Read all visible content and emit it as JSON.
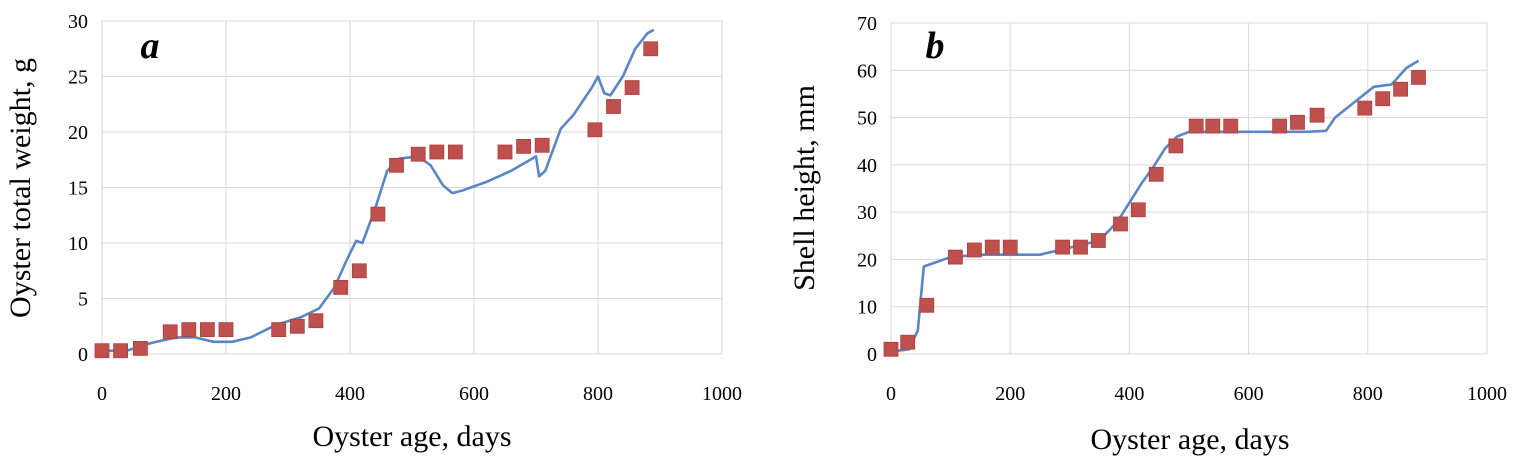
{
  "chart_data": [
    {
      "type": "line",
      "panel_letter": "a",
      "xlabel": "Oyster age, days",
      "ylabel": "Oyster total weight, g",
      "xlim": [
        0,
        1000
      ],
      "ylim": [
        0,
        30
      ],
      "xticks": [
        0,
        200,
        400,
        600,
        800,
        1000
      ],
      "yticks": [
        0,
        5,
        10,
        15,
        20,
        25,
        30
      ],
      "grid": true,
      "line_color": "#5b86c5",
      "marker_color": "#c0504d",
      "series": [
        {
          "kind": "line",
          "x": [
            0,
            40,
            80,
            120,
            150,
            180,
            210,
            240,
            280,
            320,
            350,
            375,
            395,
            410,
            420,
            440,
            460,
            480,
            510,
            530,
            550,
            565,
            580,
            620,
            660,
            700,
            705,
            715,
            740,
            760,
            790,
            800,
            810,
            820,
            840,
            860,
            880,
            890
          ],
          "y": [
            0.3,
            0.3,
            1.0,
            1.5,
            1.5,
            1.1,
            1.1,
            1.5,
            2.6,
            3.3,
            4.1,
            6.0,
            8.5,
            10.2,
            10.0,
            13.0,
            16.5,
            17.6,
            17.8,
            17.0,
            15.2,
            14.5,
            14.7,
            15.5,
            16.5,
            17.8,
            16.0,
            16.5,
            20.3,
            21.5,
            24.0,
            25.0,
            23.5,
            23.3,
            25.0,
            27.5,
            28.9,
            29.2
          ]
        },
        {
          "kind": "markers",
          "x": [
            0,
            30,
            62,
            110,
            140,
            170,
            200,
            285,
            315,
            345,
            385,
            415,
            445,
            475,
            510,
            540,
            570,
            650,
            680,
            710,
            795,
            825,
            855,
            885
          ],
          "y": [
            0.3,
            0.3,
            0.5,
            2.0,
            2.2,
            2.2,
            2.2,
            2.2,
            2.5,
            3.0,
            6.0,
            7.5,
            12.6,
            17.0,
            18.0,
            18.2,
            18.2,
            18.2,
            18.7,
            18.8,
            20.2,
            22.3,
            24.0,
            27.5
          ]
        }
      ]
    },
    {
      "type": "line",
      "panel_letter": "b",
      "xlabel": "Oyster age, days",
      "ylabel": "Shell height, mm",
      "xlim": [
        0,
        1000
      ],
      "ylim": [
        0,
        70
      ],
      "xticks": [
        0,
        200,
        400,
        600,
        800,
        1000
      ],
      "yticks": [
        0,
        10,
        20,
        30,
        40,
        50,
        60,
        70
      ],
      "grid": true,
      "line_color": "#5b86c5",
      "marker_color": "#c0504d",
      "series": [
        {
          "kind": "line",
          "x": [
            0,
            30,
            45,
            55,
            100,
            150,
            250,
            300,
            350,
            380,
            400,
            420,
            440,
            460,
            480,
            500,
            560,
            700,
            730,
            745,
            780,
            810,
            840,
            865,
            885
          ],
          "y": [
            0.5,
            1.0,
            5.0,
            18.5,
            20.5,
            21.0,
            21.0,
            22.5,
            24.0,
            28.0,
            32.0,
            36.0,
            39.5,
            43.5,
            46.0,
            47.0,
            47.0,
            47.0,
            47.2,
            50.0,
            53.5,
            56.5,
            57.0,
            60.5,
            62.0
          ]
        },
        {
          "kind": "markers",
          "x": [
            0,
            28,
            60,
            108,
            140,
            170,
            200,
            288,
            318,
            348,
            385,
            415,
            445,
            478,
            512,
            540,
            570,
            652,
            682,
            715,
            795,
            825,
            855,
            885
          ],
          "y": [
            1.0,
            2.5,
            10.3,
            20.5,
            22.0,
            22.6,
            22.6,
            22.6,
            22.6,
            24.0,
            27.5,
            30.5,
            38.0,
            44.0,
            48.2,
            48.2,
            48.2,
            48.2,
            49.0,
            50.5,
            52.0,
            54.0,
            56.0,
            58.5
          ]
        }
      ]
    }
  ]
}
